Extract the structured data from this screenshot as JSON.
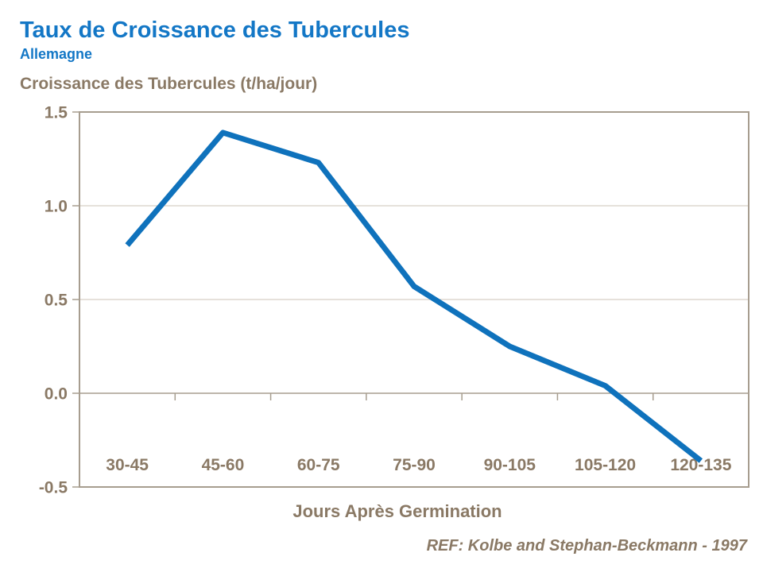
{
  "page": {
    "reference": "REF: Kolbe and Stephan-Beckmann - 1997"
  },
  "colors": {
    "accent_blue": "#1377C6",
    "line_blue": "#0F72BC",
    "text_brown": "#8A7965",
    "axis_border": "#A79D8F",
    "gridline": "#CCC3B7"
  },
  "chart_data": {
    "type": "line",
    "title": "Taux de Croissance des Tubercules",
    "subtitle": "Allemagne",
    "ylabel": "Croissance des Tubercules (t/ha/jour)",
    "xlabel": "Jours Après Germination",
    "categories": [
      "30-45",
      "45-60",
      "60-75",
      "75-90",
      "90-105",
      "105-120",
      "120-135"
    ],
    "values": [
      0.79,
      1.39,
      1.23,
      0.57,
      0.25,
      0.04,
      -0.36
    ],
    "series_name": "Allemagne",
    "ylim": [
      -0.5,
      1.5
    ],
    "yticks": [
      1.5,
      1.0,
      0.5,
      0.0,
      -0.5
    ],
    "ytick_labels": [
      "1.5",
      "1.0",
      "0.5",
      "0.0",
      "-0.5"
    ],
    "grid": true,
    "legend": false,
    "line_color": "#0F72BC",
    "line_width": 7
  }
}
